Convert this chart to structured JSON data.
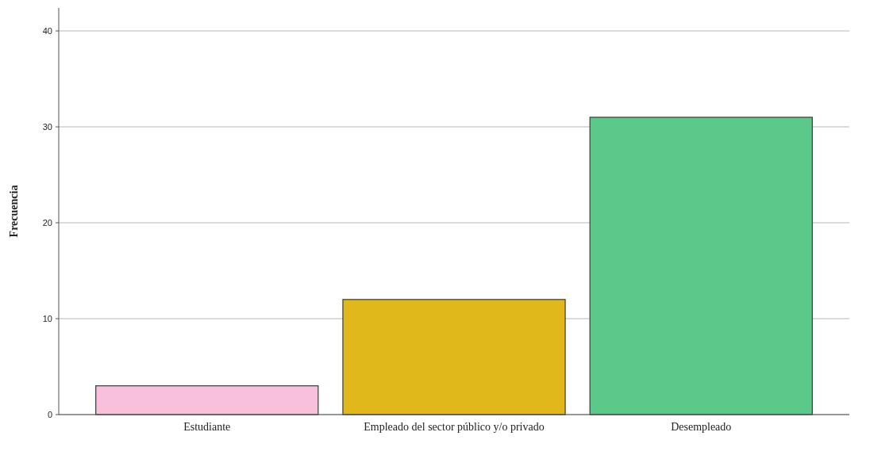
{
  "chart_data": {
    "type": "bar",
    "ylabel": "Frecuencia",
    "categories": [
      "Estudiante",
      "Empleado del sector público y/o privado",
      "Desempleado"
    ],
    "values": [
      3,
      12,
      31
    ],
    "colors": [
      "#f9c0dc",
      "#e0b81c",
      "#5bc98a"
    ],
    "ylim": [
      0,
      42.4
    ],
    "yticks": [
      0,
      10,
      20,
      30,
      40
    ],
    "grid": "y"
  }
}
